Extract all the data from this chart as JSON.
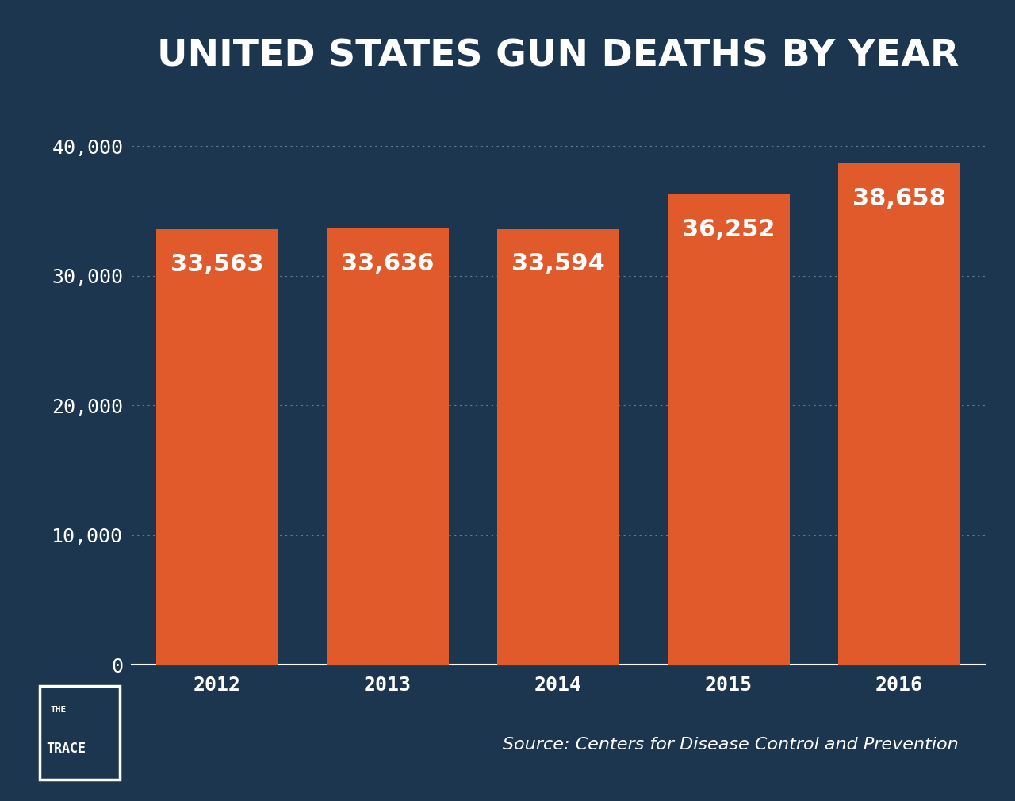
{
  "title": "UNITED STATES GUN DEATHS BY YEAR",
  "years": [
    "2012",
    "2013",
    "2014",
    "2015",
    "2016"
  ],
  "values": [
    33563,
    33636,
    33594,
    36252,
    38658
  ],
  "bar_color": "#E05A2B",
  "background_color": "#1D3650",
  "text_color": "#FFFFFF",
  "grid_color": "#FFFFFF",
  "yticks": [
    0,
    10000,
    20000,
    30000,
    40000
  ],
  "ytick_labels": [
    "0",
    "10,000",
    "20,000",
    "30,000",
    "40,000"
  ],
  "ylim": [
    0,
    42000
  ],
  "source_text": "Source: Centers for Disease Control and Prevention",
  "bar_labels": [
    "33,563",
    "33,636",
    "33,594",
    "36,252",
    "38,658"
  ],
  "title_fontsize": 34,
  "tick_fontsize": 18,
  "bar_label_fontsize": 22,
  "source_fontsize": 16,
  "bar_width": 0.72
}
